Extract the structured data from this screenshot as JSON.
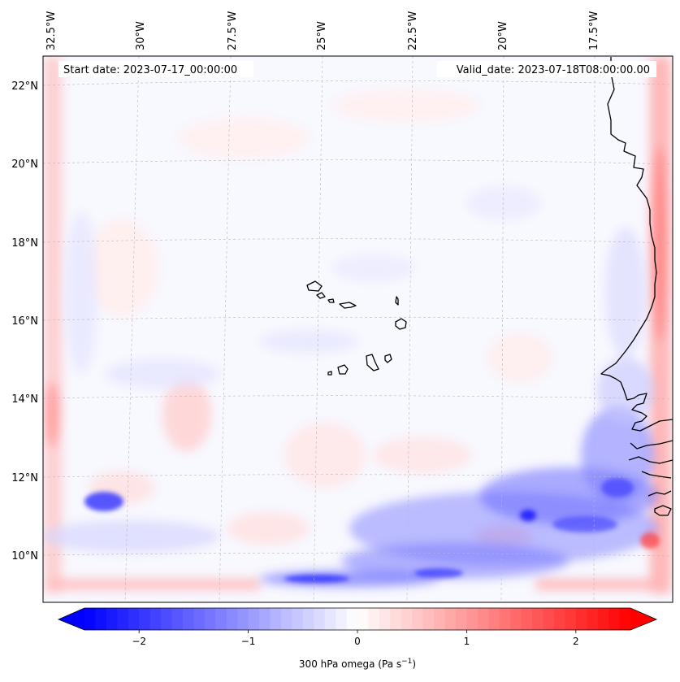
{
  "map": {
    "start_label": "Start date: 2023-07-17_00:00:00",
    "valid_label": "Valid_date: 2023-07-18T08:00:00.00",
    "lon_ticks": [
      "32.5°W",
      "30°W",
      "27.5°W",
      "25°W",
      "22.5°W",
      "20°W",
      "17.5°W"
    ],
    "lat_ticks": [
      "22°N",
      "20°N",
      "18°N",
      "16°N",
      "14°N",
      "12°N",
      "10°N"
    ],
    "gridline_color": "#b0b0b0",
    "coastline_color": "#000000",
    "field_base_color": "#f8f8ff"
  },
  "colorbar": {
    "label_main": "300 hPa omega (Pa s",
    "label_sup": "−1",
    "label_end": ")",
    "tick_labels": [
      "−2",
      "−1",
      "0",
      "1",
      "2"
    ],
    "min": -2.5,
    "max": 2.5,
    "negative_color": "#0000ff",
    "positive_color": "#ff0000",
    "neutral_color": "#ffffff"
  }
}
